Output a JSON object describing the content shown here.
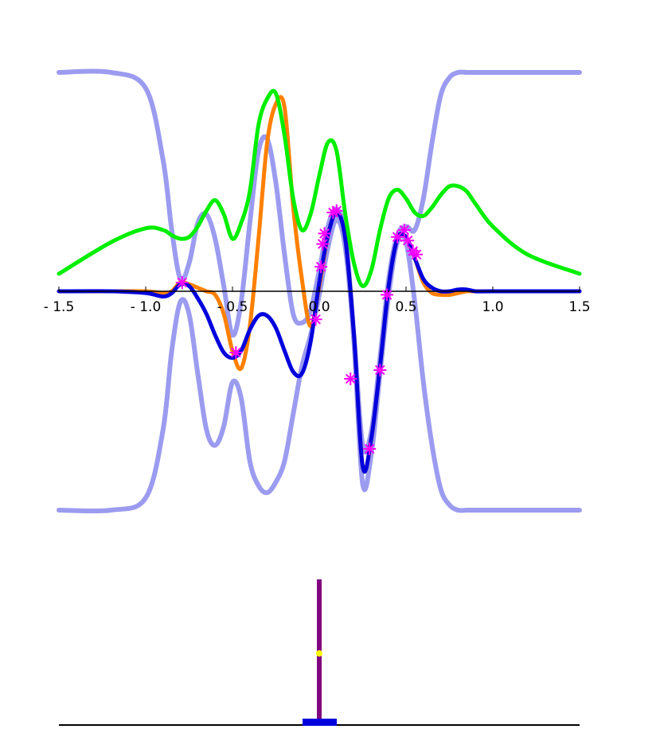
{
  "chart_data": {
    "type": "line",
    "x": [
      -1.5,
      -1.2,
      -1.0,
      -0.9,
      -0.85,
      -0.8,
      -0.75,
      -0.7,
      -0.65,
      -0.6,
      -0.55,
      -0.5,
      -0.45,
      -0.4,
      -0.35,
      -0.3,
      -0.25,
      -0.2,
      -0.15,
      -0.1,
      -0.05,
      0.0,
      0.05,
      0.1,
      0.15,
      0.2,
      0.25,
      0.3,
      0.35,
      0.4,
      0.45,
      0.5,
      0.55,
      0.6,
      0.65,
      0.7,
      0.75,
      0.8,
      0.85,
      0.9,
      1.0,
      1.2,
      1.5
    ],
    "series": [
      {
        "color": "#9b9bf0",
        "width": 6,
        "values": [
          1.25,
          1.25,
          1.16,
          0.75,
          0.35,
          0.07,
          0.16,
          0.39,
          0.44,
          0.3,
          0.03,
          -0.25,
          -0.06,
          0.39,
          0.8,
          0.87,
          0.62,
          0.21,
          -0.13,
          -0.18,
          -0.11,
          0.12,
          0.37,
          0.47,
          0.32,
          -0.25,
          -0.88,
          -0.8,
          -0.38,
          0.07,
          0.32,
          0.37,
          0.35,
          0.53,
          0.85,
          1.12,
          1.22,
          1.25,
          1.25,
          1.25,
          1.25,
          1.25,
          1.25
        ]
      },
      {
        "color": "#9b9bf0",
        "width": 6,
        "values": [
          -1.25,
          -1.25,
          -1.18,
          -0.79,
          -0.34,
          -0.06,
          -0.13,
          -0.47,
          -0.79,
          -0.88,
          -0.77,
          -0.52,
          -0.61,
          -0.97,
          -1.11,
          -1.15,
          -1.09,
          -0.97,
          -0.7,
          -0.43,
          -0.25,
          -0.02,
          0.25,
          0.41,
          0.25,
          -0.29,
          -1.1,
          -0.93,
          -0.47,
          -0.02,
          0.28,
          0.28,
          -0.06,
          -0.52,
          -0.88,
          -1.13,
          -1.22,
          -1.25,
          -1.25,
          -1.25,
          -1.25,
          -1.25,
          -1.25
        ]
      },
      {
        "color": "#ff8000",
        "width": 5,
        "values": [
          0,
          0,
          0,
          -0.01,
          0,
          0.05,
          0.04,
          0.02,
          0,
          -0.02,
          -0.13,
          -0.34,
          -0.44,
          -0.2,
          0.3,
          0.85,
          1.07,
          1.05,
          0.48,
          0.07,
          -0.2,
          0.03,
          0.32,
          0.45,
          0.3,
          -0.25,
          -1.0,
          -0.84,
          -0.43,
          0.03,
          0.3,
          0.31,
          0.19,
          0.05,
          -0.01,
          -0.02,
          -0.02,
          -0.01,
          0,
          0,
          0,
          0,
          0
        ]
      },
      {
        "color": "#0000dd",
        "width": 5,
        "values": [
          0,
          0,
          -0.01,
          -0.03,
          -0.01,
          0.04,
          0.03,
          -0.04,
          -0.13,
          -0.25,
          -0.35,
          -0.38,
          -0.34,
          -0.22,
          -0.14,
          -0.14,
          -0.21,
          -0.34,
          -0.46,
          -0.47,
          -0.29,
          0.05,
          0.32,
          0.45,
          0.3,
          -0.25,
          -1.0,
          -0.84,
          -0.43,
          0.03,
          0.3,
          0.31,
          0.19,
          0.07,
          0.02,
          0,
          0,
          0.01,
          0.01,
          0,
          0,
          0,
          0
        ]
      },
      {
        "color": "#00ee00",
        "width": 5,
        "values": [
          0.1,
          0.28,
          0.36,
          0.35,
          0.32,
          0.3,
          0.31,
          0.37,
          0.46,
          0.52,
          0.44,
          0.3,
          0.39,
          0.57,
          0.95,
          1.1,
          1.13,
          0.89,
          0.53,
          0.35,
          0.44,
          0.66,
          0.85,
          0.8,
          0.44,
          0.16,
          0.03,
          0.12,
          0.35,
          0.53,
          0.58,
          0.53,
          0.45,
          0.43,
          0.48,
          0.55,
          0.6,
          0.6,
          0.57,
          0.5,
          0.37,
          0.21,
          0.1
        ]
      }
    ],
    "markers": {
      "color": "#ff00ff",
      "x": [
        -0.79,
        -0.48,
        -0.02,
        0.01,
        0.02,
        0.03,
        0.08,
        0.1,
        0.18,
        0.29,
        0.35,
        0.39,
        0.45,
        0.49,
        0.51,
        0.54,
        0.56
      ],
      "y": [
        0.05,
        -0.35,
        -0.16,
        0.14,
        0.27,
        0.33,
        0.45,
        0.46,
        -0.5,
        -0.9,
        -0.45,
        -0.02,
        0.31,
        0.35,
        0.29,
        0.23,
        0.21
      ]
    },
    "xlim": [
      -1.5,
      1.5
    ],
    "ylim": [
      -1.4,
      1.4
    ],
    "xticks": [
      {
        "value": -1.5,
        "label": "- 1.5"
      },
      {
        "value": -1.0,
        "label": "- 1.0"
      },
      {
        "value": -0.5,
        "label": "- 0.5"
      },
      {
        "value": 0.0,
        "label": "0.0"
      },
      0.5,
      {
        "value": 1.0,
        "label": "1.0"
      },
      1.5
    ]
  }
}
